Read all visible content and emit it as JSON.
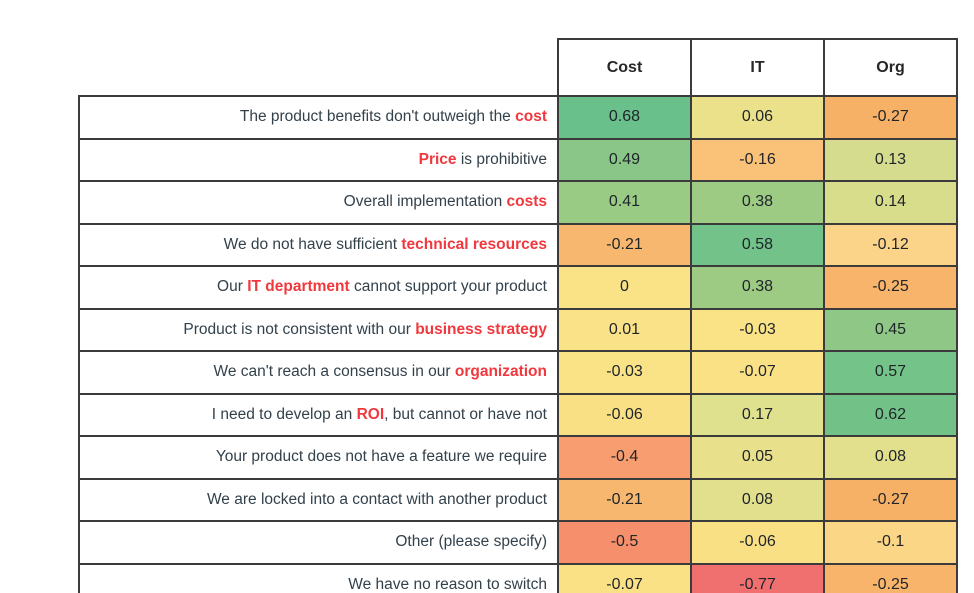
{
  "chart_data": {
    "type": "heatmap",
    "title": "",
    "columns": [
      "Cost",
      "IT",
      "Org"
    ],
    "value_range": [
      -1,
      1
    ],
    "color_scale": {
      "negative": "#f07070",
      "zero": "#fae387",
      "positive": "#69c08b"
    },
    "rows": [
      {
        "label_parts": [
          {
            "text": "The product benefits don't outweigh the ",
            "highlight": false
          },
          {
            "text": "cost",
            "highlight": true
          }
        ],
        "values": [
          0.68,
          0.06,
          -0.27
        ],
        "colors": [
          "#69c08b",
          "#ebe18b",
          "#f7b166"
        ]
      },
      {
        "label_parts": [
          {
            "text": "Price",
            "highlight": true
          },
          {
            "text": " is prohibitive",
            "highlight": false
          }
        ],
        "values": [
          0.49,
          -0.16,
          0.13
        ],
        "colors": [
          "#8ac687",
          "#f9c278",
          "#d5dc8e"
        ]
      },
      {
        "label_parts": [
          {
            "text": "Overall implementation ",
            "highlight": false
          },
          {
            "text": "costs",
            "highlight": true
          }
        ],
        "values": [
          0.41,
          0.38,
          0.14
        ],
        "colors": [
          "#9acb84",
          "#9dcb84",
          "#d8dd8c"
        ]
      },
      {
        "label_parts": [
          {
            "text": "We do not have sufficient ",
            "highlight": false
          },
          {
            "text": "technical resources",
            "highlight": true
          }
        ],
        "values": [
          -0.21,
          0.58,
          -0.12
        ],
        "colors": [
          "#f8b76e",
          "#72c289",
          "#fbd489"
        ]
      },
      {
        "label_parts": [
          {
            "text": "Our ",
            "highlight": false
          },
          {
            "text": "IT department",
            "highlight": true
          },
          {
            "text": " cannot support your product",
            "highlight": false
          }
        ],
        "values": [
          0,
          0.38,
          -0.25
        ],
        "colors": [
          "#fae387",
          "#9dcb84",
          "#f8b46a"
        ]
      },
      {
        "label_parts": [
          {
            "text": "Product is not consistent with our ",
            "highlight": false
          },
          {
            "text": "business strategy",
            "highlight": true
          }
        ],
        "values": [
          0.01,
          -0.03,
          0.45
        ],
        "colors": [
          "#f9e287",
          "#fae287",
          "#8fc886"
        ]
      },
      {
        "label_parts": [
          {
            "text": "We can't reach a consensus in our ",
            "highlight": false
          },
          {
            "text": "organization",
            "highlight": true
          }
        ],
        "values": [
          -0.03,
          -0.07,
          0.57
        ],
        "colors": [
          "#fae287",
          "#fae185",
          "#74c389"
        ]
      },
      {
        "label_parts": [
          {
            "text": "I need to develop an ",
            "highlight": false
          },
          {
            "text": "ROI",
            "highlight": true
          },
          {
            "text": ", but cannot or have not",
            "highlight": false
          }
        ],
        "values": [
          -0.06,
          0.17,
          0.62
        ],
        "colors": [
          "#fae085",
          "#dfe18f",
          "#72c288"
        ]
      },
      {
        "label_parts": [
          {
            "text": "Your product does not have a feature we require",
            "highlight": false
          }
        ],
        "values": [
          -0.4,
          0.05,
          0.08
        ],
        "colors": [
          "#f79d6f",
          "#e9e08c",
          "#e2df8d"
        ]
      },
      {
        "label_parts": [
          {
            "text": "We are locked into a contact with another product",
            "highlight": false
          }
        ],
        "values": [
          -0.21,
          0.08,
          -0.27
        ],
        "colors": [
          "#f8b76e",
          "#e2df8d",
          "#f7b166"
        ]
      },
      {
        "label_parts": [
          {
            "text": "Other (please specify)",
            "highlight": false
          }
        ],
        "values": [
          -0.5,
          -0.06,
          -0.1
        ],
        "colors": [
          "#f68f6c",
          "#fae085",
          "#fbd686"
        ]
      },
      {
        "label_parts": [
          {
            "text": "We have no reason to switch",
            "highlight": false
          }
        ],
        "values": [
          -0.07,
          -0.77,
          -0.25
        ],
        "colors": [
          "#fae185",
          "#f07070",
          "#f8b46a"
        ]
      }
    ]
  },
  "styles": {
    "highlight_text_color": "#f0383e",
    "label_text_color": "#33414b",
    "border_color": "#3b3b3b"
  }
}
